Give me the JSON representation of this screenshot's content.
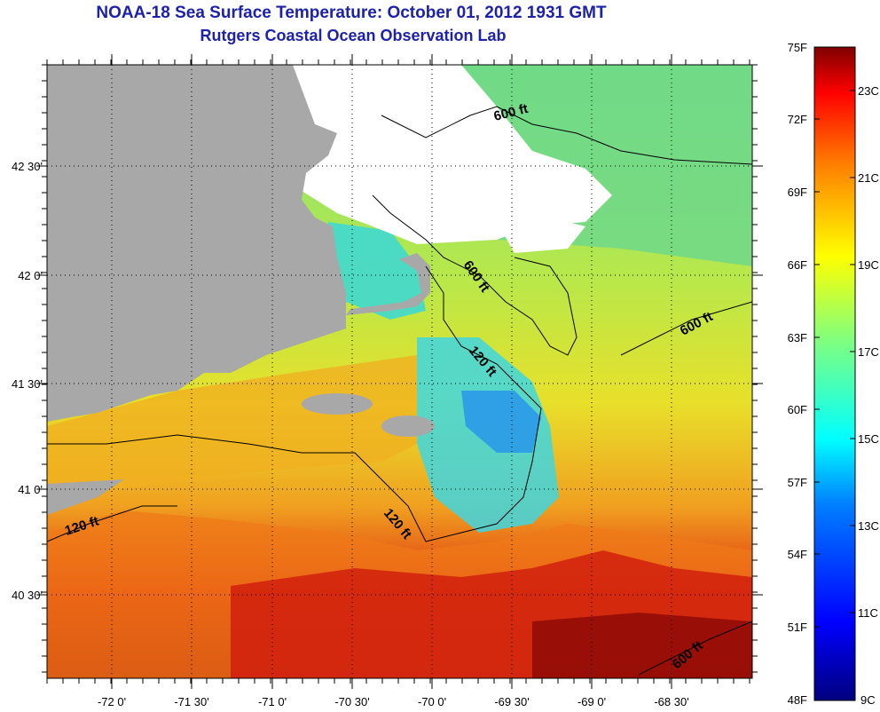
{
  "header": {
    "title": "NOAA-18 Sea Surface Temperature:  October 01, 2012 1931 GMT",
    "subtitle": "Rutgers Coastal Ocean Observation Lab"
  },
  "map": {
    "lon_ticks": [
      "-72 0'",
      "-71 30'",
      "-71 0'",
      "-70 30'",
      "-70 0'",
      "-69 30'",
      "-69 0'",
      "-68 30'"
    ],
    "lat_ticks": [
      "42 30'",
      "42 0'",
      "41 30'",
      "41 0'",
      "40 30'"
    ],
    "contours": [
      "600 ft",
      "600 ft",
      "600 ft",
      "120 ft",
      "120 ft",
      "120 ft",
      "600 ft"
    ]
  },
  "colorbar": {
    "f_labels": [
      "75F",
      "72F",
      "69F",
      "66F",
      "63F",
      "60F",
      "57F",
      "54F",
      "51F",
      "48F"
    ],
    "c_labels": [
      "23C",
      "21C",
      "19C",
      "17C",
      "15C",
      "13C",
      "11C",
      "9C"
    ],
    "colors": [
      "#00007f",
      "#0000ff",
      "#007fff",
      "#00ffff",
      "#7fff7f",
      "#ffff00",
      "#ff7f00",
      "#ff0000",
      "#7f0000"
    ]
  },
  "colors": {
    "land": "#a8a8a8",
    "cloud": "#ffffff",
    "title": "#1d22a8"
  }
}
